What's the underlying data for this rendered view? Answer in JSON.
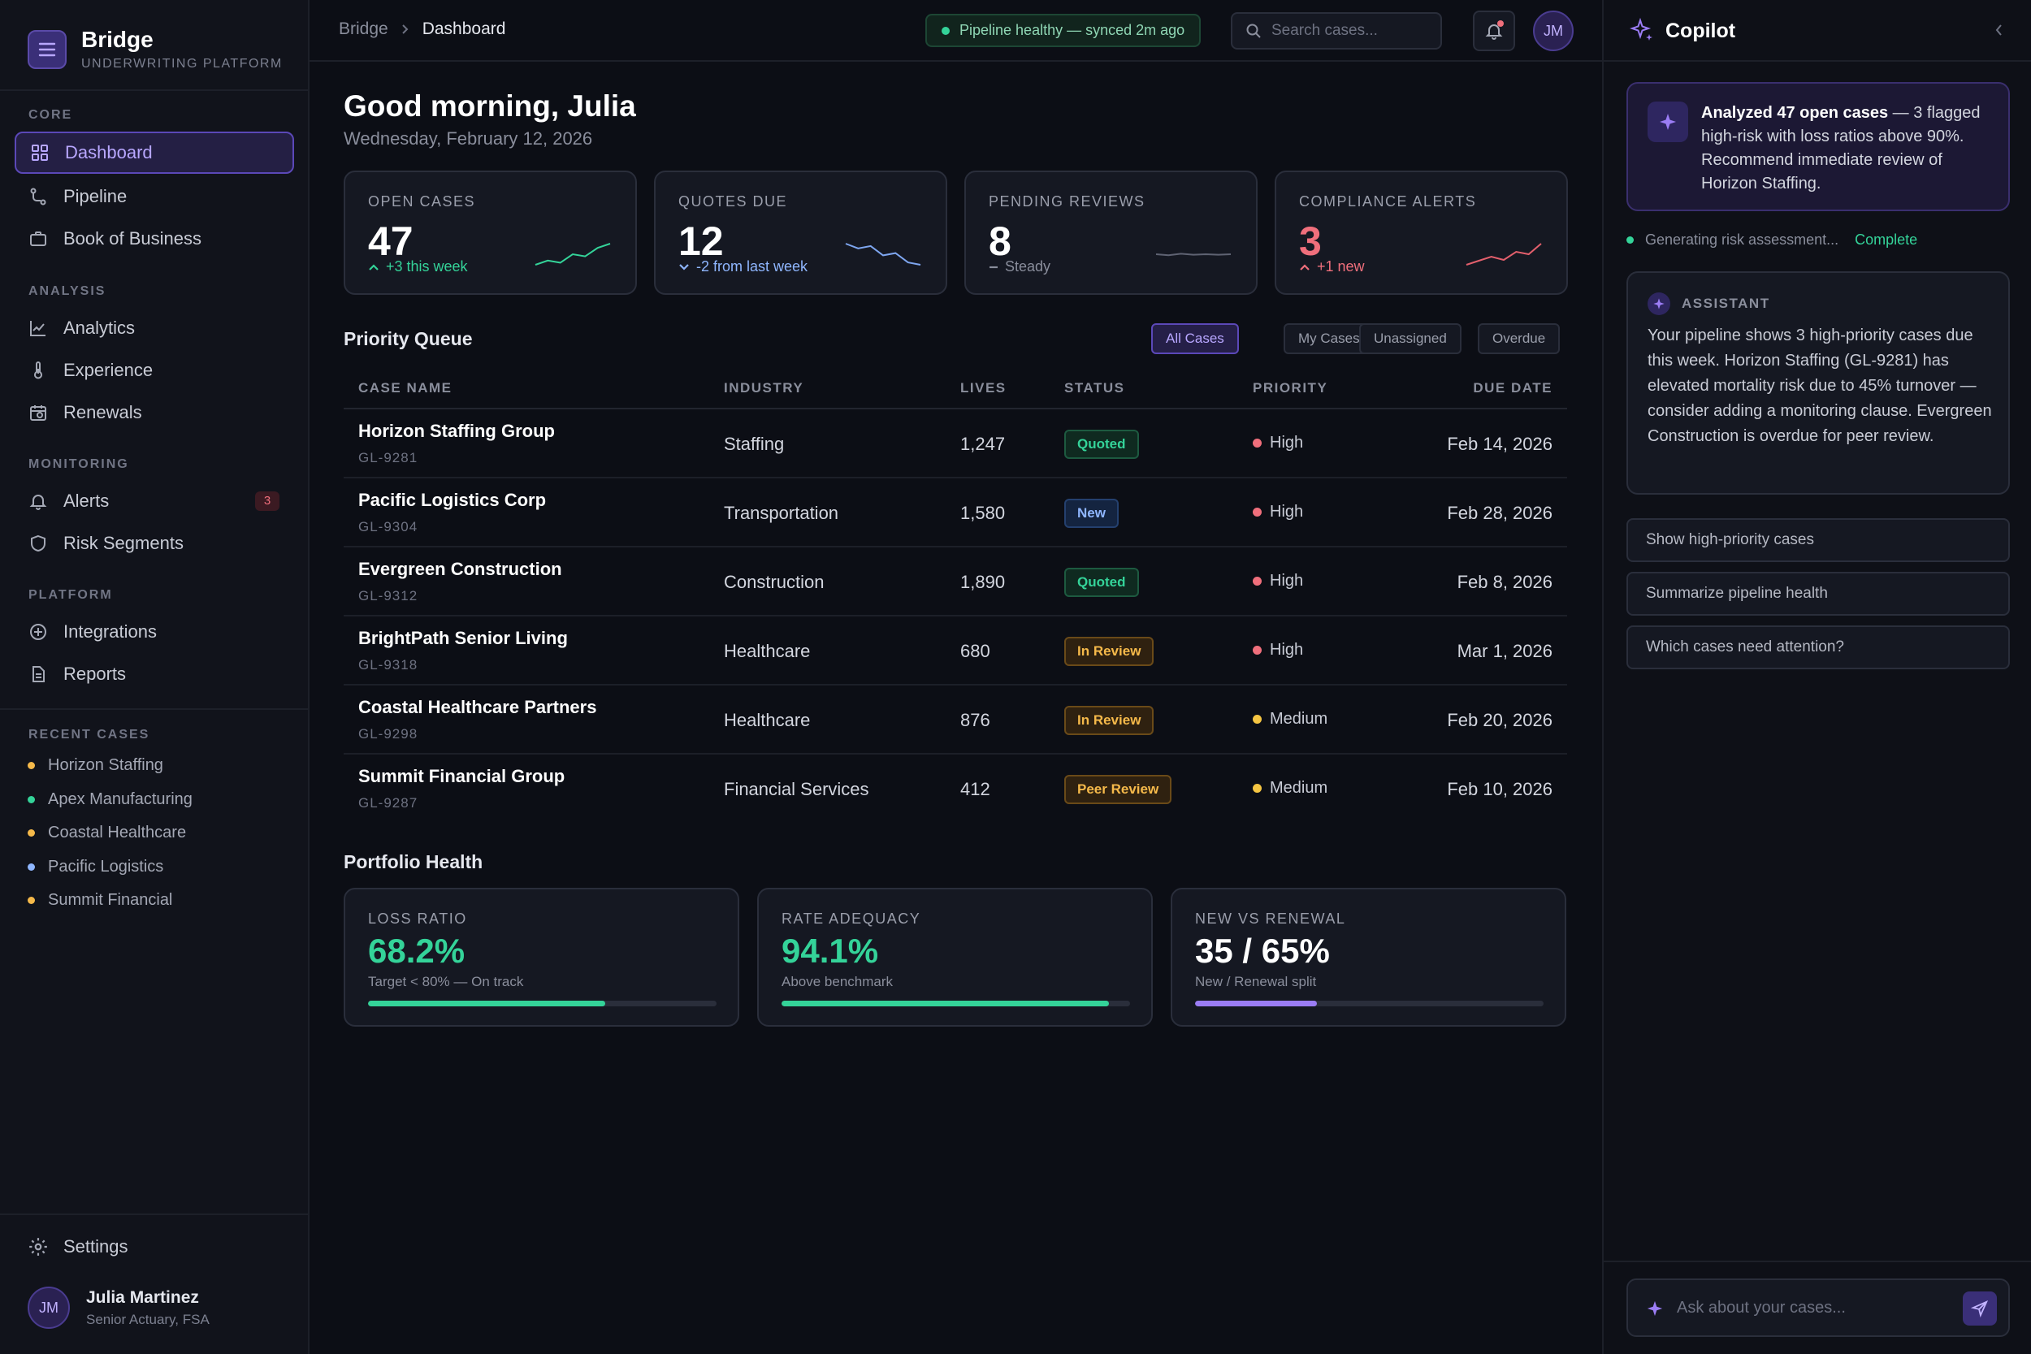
{
  "brand": {
    "name": "Bridge",
    "subtitle": "UNDERWRITING PLATFORM"
  },
  "sidebar": {
    "sections": [
      {
        "label": "CORE",
        "items": [
          {
            "label": "Dashboard",
            "icon": "grid-icon",
            "active": true
          },
          {
            "label": "Pipeline",
            "icon": "pipeline-icon"
          },
          {
            "label": "Book of Business",
            "icon": "briefcase-icon"
          }
        ]
      },
      {
        "label": "ANALYSIS",
        "items": [
          {
            "label": "Analytics",
            "icon": "chart-line-icon"
          },
          {
            "label": "Experience",
            "icon": "thermometer-icon"
          },
          {
            "label": "Renewals",
            "icon": "calendar-icon"
          }
        ]
      },
      {
        "label": "MONITORING",
        "items": [
          {
            "label": "Alerts",
            "icon": "bell-icon",
            "badge": "3"
          },
          {
            "label": "Risk Segments",
            "icon": "shield-icon"
          }
        ]
      },
      {
        "label": "PLATFORM",
        "items": [
          {
            "label": "Integrations",
            "icon": "plus-circle-icon"
          },
          {
            "label": "Reports",
            "icon": "document-icon"
          }
        ]
      }
    ],
    "recent_label": "RECENT CASES",
    "recent": [
      {
        "label": "Horizon Staffing",
        "color": "#f5b94a"
      },
      {
        "label": "Apex Manufacturing",
        "color": "#34d399"
      },
      {
        "label": "Coastal Healthcare",
        "color": "#f5b94a"
      },
      {
        "label": "Pacific Logistics",
        "color": "#8fb6ff"
      },
      {
        "label": "Summit Financial",
        "color": "#f5b94a"
      }
    ],
    "settings_label": "Settings",
    "user": {
      "initials": "JM",
      "name": "Julia Martinez",
      "role": "Senior Actuary, FSA"
    }
  },
  "topbar": {
    "breadcrumb_root": "Bridge",
    "breadcrumb_current": "Dashboard",
    "pipeline_status": "Pipeline healthy — synced 2m ago",
    "search_placeholder": "Search cases...",
    "avatar_initials": "JM"
  },
  "main": {
    "greeting": "Good morning, Julia",
    "date": "Wednesday, February 12, 2026",
    "stats": [
      {
        "label": "OPEN CASES",
        "value": "47",
        "delta": "+3 this week",
        "trend": "up",
        "tone": "green",
        "spark": [
          4,
          6,
          5,
          9,
          8,
          12,
          14
        ]
      },
      {
        "label": "QUOTES DUE",
        "value": "12",
        "delta": "-2 from last week",
        "trend": "down",
        "tone": "blue",
        "spark": [
          12,
          10,
          11,
          7,
          8,
          4,
          3
        ]
      },
      {
        "label": "PENDING REVIEWS",
        "value": "8",
        "delta": "Steady",
        "trend": "flat",
        "tone": "gray",
        "spark": [
          8,
          8.2,
          7.9,
          8.1,
          8,
          8.1,
          8
        ]
      },
      {
        "label": "COMPLIANCE ALERTS",
        "value": "3",
        "delta": "+1 new",
        "trend": "up",
        "tone": "red",
        "spark": [
          2,
          2.5,
          3,
          2.6,
          3.6,
          3.3,
          4.6
        ]
      }
    ],
    "queue": {
      "title": "Priority Queue",
      "filters": [
        "All Cases",
        "My Cases",
        "Unassigned",
        "Overdue"
      ],
      "columns": [
        "CASE NAME",
        "INDUSTRY",
        "LIVES",
        "STATUS",
        "PRIORITY",
        "DUE DATE"
      ],
      "rows": [
        {
          "name": "Horizon Staffing Group",
          "id": "GL-9281",
          "industry": "Staffing",
          "lives": "1,247",
          "status": "Quoted",
          "status_kind": "quoted",
          "priority": "High",
          "priority_color": "#f06f7c",
          "due": "Feb 14, 2026"
        },
        {
          "name": "Pacific Logistics Corp",
          "id": "GL-9304",
          "industry": "Transportation",
          "lives": "1,580",
          "status": "New",
          "status_kind": "new",
          "priority": "High",
          "priority_color": "#f06f7c",
          "due": "Feb 28, 2026"
        },
        {
          "name": "Evergreen Construction",
          "id": "GL-9312",
          "industry": "Construction",
          "lives": "1,890",
          "status": "Quoted",
          "status_kind": "quoted",
          "priority": "High",
          "priority_color": "#f06f7c",
          "due": "Feb 8, 2026"
        },
        {
          "name": "BrightPath Senior Living",
          "id": "GL-9318",
          "industry": "Healthcare",
          "lives": "680",
          "status": "In Review",
          "status_kind": "review",
          "priority": "High",
          "priority_color": "#f06f7c",
          "due": "Mar 1, 2026"
        },
        {
          "name": "Coastal Healthcare Partners",
          "id": "GL-9298",
          "industry": "Healthcare",
          "lives": "876",
          "status": "In Review",
          "status_kind": "review",
          "priority": "Medium",
          "priority_color": "#f5c542",
          "due": "Feb 20, 2026"
        },
        {
          "name": "Summit Financial Group",
          "id": "GL-9287",
          "industry": "Financial Services",
          "lives": "412",
          "status": "Peer Review",
          "status_kind": "review",
          "priority": "Medium",
          "priority_color": "#f5c542",
          "due": "Feb 10, 2026"
        }
      ]
    },
    "portfolio": {
      "title": "Portfolio Health",
      "cards": [
        {
          "label": "LOSS RATIO",
          "value": "68.2%",
          "sub": "Target < 80% — On track",
          "fill": 0.68,
          "color": "#34d399"
        },
        {
          "label": "RATE ADEQUACY",
          "value": "94.1%",
          "sub": "Above benchmark",
          "fill": 0.94,
          "color": "#34d399"
        },
        {
          "label": "NEW VS RENEWAL",
          "value": "35 / 65%",
          "sub": "New / Renewal split",
          "fill": 0.35,
          "color": "#9b7df5"
        }
      ]
    }
  },
  "copilot": {
    "title": "Copilot",
    "summary_bold": "Analyzed 47 open cases",
    "summary_rest": " — 3 flagged high-risk with loss ratios above 90%. Recommend immediate review of Horizon Staffing.",
    "progress_text": "Generating risk assessment...",
    "progress_done": "Complete",
    "assistant_label": "ASSISTANT",
    "assistant_message": "Your pipeline shows 3 high-priority cases due this week. Horizon Staffing (GL-9281) has elevated mortality risk due to 45% turnover — consider adding a monitoring clause. Evergreen Construction is overdue for peer review.",
    "suggestions": [
      "Show high-priority cases",
      "Summarize pipeline health",
      "Which cases need attention?"
    ],
    "input_placeholder": "Ask about your cases..."
  }
}
